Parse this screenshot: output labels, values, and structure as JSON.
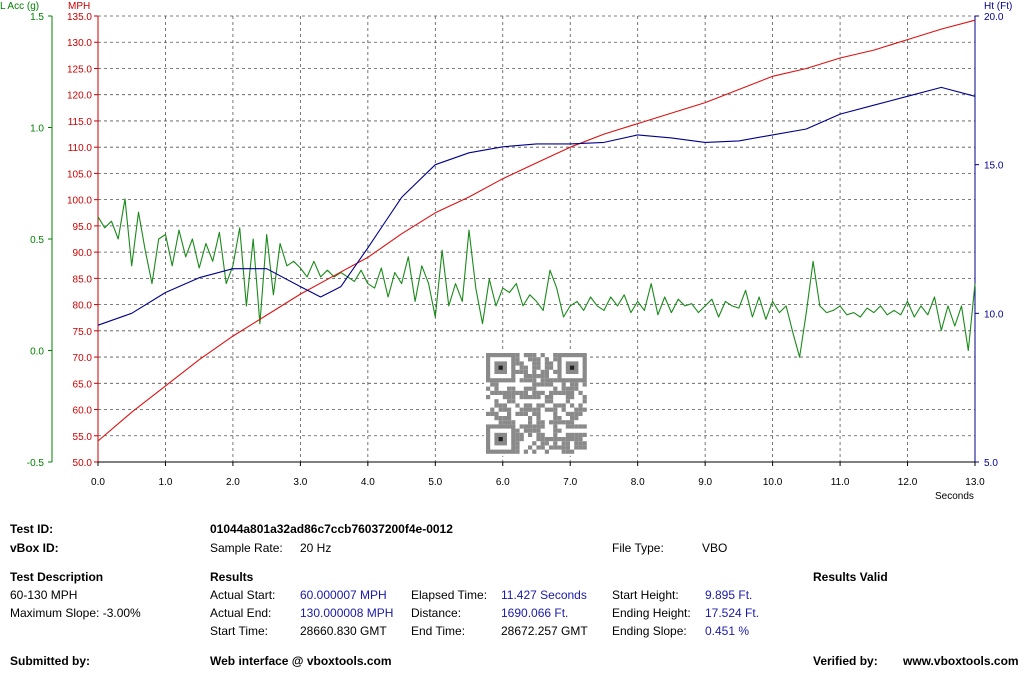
{
  "chart_data": {
    "type": "line",
    "title": "",
    "axes": {
      "x": {
        "label": "Seconds",
        "range": [
          0,
          13
        ],
        "ticks": [
          "0.0",
          "1.0",
          "2.0",
          "3.0",
          "4.0",
          "5.0",
          "6.0",
          "7.0",
          "8.0",
          "9.0",
          "10.0",
          "11.0",
          "12.0",
          "13.0"
        ]
      },
      "acc": {
        "label": "L Acc (g)",
        "range": [
          -0.5,
          1.5
        ],
        "ticks": [
          "-0.5",
          "0.0",
          "0.5",
          "1.0",
          "1.5"
        ],
        "color": "#008000"
      },
      "speed": {
        "label": "MPH",
        "range": [
          50,
          135
        ],
        "ticks": [
          "50.0",
          "55.0",
          "60.0",
          "65.0",
          "70.0",
          "75.0",
          "80.0",
          "85.0",
          "90.0",
          "95.0",
          "100.0",
          "105.0",
          "110.0",
          "115.0",
          "120.0",
          "125.0",
          "130.0",
          "135.0"
        ],
        "color": "#cc0000"
      },
      "height": {
        "label": "Ht (Ft)",
        "range": [
          5,
          20
        ],
        "ticks": [
          "5.0",
          "10.0",
          "15.0",
          "20.0"
        ],
        "color": "#00008b"
      }
    },
    "grid": true,
    "series": [
      {
        "name": "MPH",
        "axis": "speed",
        "color": "#dd1111",
        "x": [
          0,
          0.5,
          1,
          1.5,
          2,
          2.5,
          3,
          3.5,
          4,
          4.5,
          5,
          5.5,
          6,
          6.5,
          7,
          7.5,
          8,
          8.5,
          9,
          9.5,
          10,
          10.5,
          11,
          11.5,
          12,
          12.5,
          13
        ],
        "y": [
          54,
          59.5,
          64.5,
          69.5,
          74,
          78,
          82,
          85.5,
          89,
          93.5,
          97.5,
          100.5,
          104,
          107,
          110,
          112.5,
          114.5,
          116.5,
          118.5,
          121,
          123.5,
          125,
          127,
          128.5,
          130.5,
          132.5,
          134.2
        ]
      },
      {
        "name": "Ht (Ft)",
        "axis": "height",
        "color": "#00008b",
        "x": [
          0,
          0.5,
          1,
          1.5,
          2,
          2.5,
          3,
          3.3,
          3.6,
          4,
          4.5,
          5,
          5.5,
          6,
          6.5,
          7,
          7.5,
          8,
          8.5,
          9,
          9.5,
          10,
          10.5,
          11,
          11.5,
          12,
          12.5,
          13
        ],
        "y": [
          9.6,
          10.0,
          10.7,
          11.2,
          11.5,
          11.5,
          10.9,
          10.55,
          10.9,
          12.2,
          13.9,
          15.0,
          15.4,
          15.6,
          15.7,
          15.7,
          15.75,
          16.0,
          15.9,
          15.75,
          15.8,
          16.0,
          16.2,
          16.7,
          17.0,
          17.3,
          17.6,
          17.3
        ]
      },
      {
        "name": "L Acc (g)",
        "axis": "acc",
        "color": "#1a8a1a",
        "x": [
          0,
          0.1,
          0.2,
          0.3,
          0.4,
          0.5,
          0.6,
          0.7,
          0.8,
          0.9,
          1,
          1.1,
          1.2,
          1.3,
          1.4,
          1.5,
          1.6,
          1.7,
          1.8,
          1.9,
          2,
          2.1,
          2.2,
          2.3,
          2.4,
          2.5,
          2.6,
          2.7,
          2.8,
          2.9,
          3,
          3.1,
          3.2,
          3.3,
          3.4,
          3.5,
          3.6,
          3.7,
          3.8,
          3.9,
          4,
          4.1,
          4.2,
          4.3,
          4.4,
          4.5,
          4.6,
          4.7,
          4.8,
          4.9,
          5,
          5.1,
          5.2,
          5.3,
          5.4,
          5.5,
          5.6,
          5.7,
          5.8,
          5.9,
          6,
          6.1,
          6.2,
          6.3,
          6.4,
          6.5,
          6.6,
          6.7,
          6.8,
          6.9,
          7,
          7.1,
          7.2,
          7.3,
          7.4,
          7.5,
          7.6,
          7.7,
          7.8,
          7.9,
          8,
          8.1,
          8.2,
          8.3,
          8.4,
          8.5,
          8.6,
          8.7,
          8.8,
          8.9,
          9,
          9.1,
          9.2,
          9.3,
          9.4,
          9.5,
          9.6,
          9.7,
          9.8,
          9.9,
          10,
          10.1,
          10.2,
          10.3,
          10.4,
          10.5,
          10.6,
          10.7,
          10.8,
          10.9,
          11,
          11.1,
          11.2,
          11.3,
          11.4,
          11.5,
          11.6,
          11.7,
          11.8,
          11.9,
          12,
          12.1,
          12.2,
          12.3,
          12.4,
          12.5,
          12.6,
          12.7,
          12.8,
          12.9,
          13
        ],
        "y": [
          0.6,
          0.55,
          0.58,
          0.5,
          0.68,
          0.38,
          0.62,
          0.45,
          0.3,
          0.5,
          0.52,
          0.38,
          0.54,
          0.42,
          0.5,
          0.37,
          0.48,
          0.4,
          0.53,
          0.3,
          0.38,
          0.55,
          0.2,
          0.5,
          0.12,
          0.52,
          0.25,
          0.48,
          0.38,
          0.4,
          0.37,
          0.33,
          0.4,
          0.33,
          0.36,
          0.33,
          0.35,
          0.33,
          0.31,
          0.36,
          0.3,
          0.28,
          0.37,
          0.24,
          0.35,
          0.3,
          0.42,
          0.22,
          0.38,
          0.3,
          0.15,
          0.45,
          0.2,
          0.3,
          0.22,
          0.54,
          0.28,
          0.12,
          0.32,
          0.2,
          0.28,
          0.26,
          0.3,
          0.2,
          0.25,
          0.22,
          0.18,
          0.36,
          0.28,
          0.15,
          0.2,
          0.22,
          0.18,
          0.24,
          0.2,
          0.18,
          0.24,
          0.2,
          0.25,
          0.17,
          0.22,
          0.18,
          0.3,
          0.16,
          0.24,
          0.17,
          0.23,
          0.2,
          0.21,
          0.17,
          0.2,
          0.23,
          0.15,
          0.22,
          0.2,
          0.19,
          0.27,
          0.15,
          0.24,
          0.14,
          0.22,
          0.17,
          0.2,
          0.08,
          -0.03,
          0.17,
          0.4,
          0.2,
          0.17,
          0.18,
          0.2,
          0.16,
          0.17,
          0.15,
          0.19,
          0.17,
          0.2,
          0.16,
          0.18,
          0.16,
          0.22,
          0.15,
          0.2,
          0.16,
          0.24,
          0.09,
          0.2,
          0.11,
          0.2,
          0.0,
          0.3
        ]
      }
    ]
  },
  "report": {
    "test_id_label": "Test ID:",
    "test_id_value": "01044a801a32ad86c7ccb76037200f4e-0012",
    "vbox_id_label": "vBox ID:",
    "sample_rate_label": "Sample Rate:",
    "sample_rate_value": "20 Hz",
    "file_type_label": "File Type:",
    "file_type_value": "VBO",
    "test_description_heading": "Test Description",
    "test_description": "60-130 MPH",
    "max_slope": "Maximum Slope:  -3.00%",
    "results_heading": "Results",
    "results_valid": "Results Valid",
    "actual_start_label": "Actual Start:",
    "actual_start_value": "60.000007 MPH",
    "actual_end_label": "Actual End:",
    "actual_end_value": "130.000008 MPH",
    "start_time_label": "Start Time:",
    "start_time_value": "28660.830 GMT",
    "elapsed_time_label": "Elapsed Time:",
    "elapsed_time_value": "11.427 Seconds",
    "distance_label": "Distance:",
    "distance_value": "1690.066 Ft.",
    "end_time_label": "End Time:",
    "end_time_value": "28672.257 GMT",
    "start_height_label": "Start Height:",
    "start_height_value": "9.895 Ft.",
    "ending_height_label": "Ending Height:",
    "ending_height_value": "17.524 Ft.",
    "ending_slope_label": "Ending Slope:",
    "ending_slope_value": "0.451 %",
    "submitted_by_label": "Submitted by:",
    "web_interface": "Web interface @ vboxtools.com",
    "verified_by_label": "Verified by:",
    "verified_by_value": "www.vboxtools.com"
  },
  "qr_code": {
    "icon": "qr-code-icon"
  }
}
